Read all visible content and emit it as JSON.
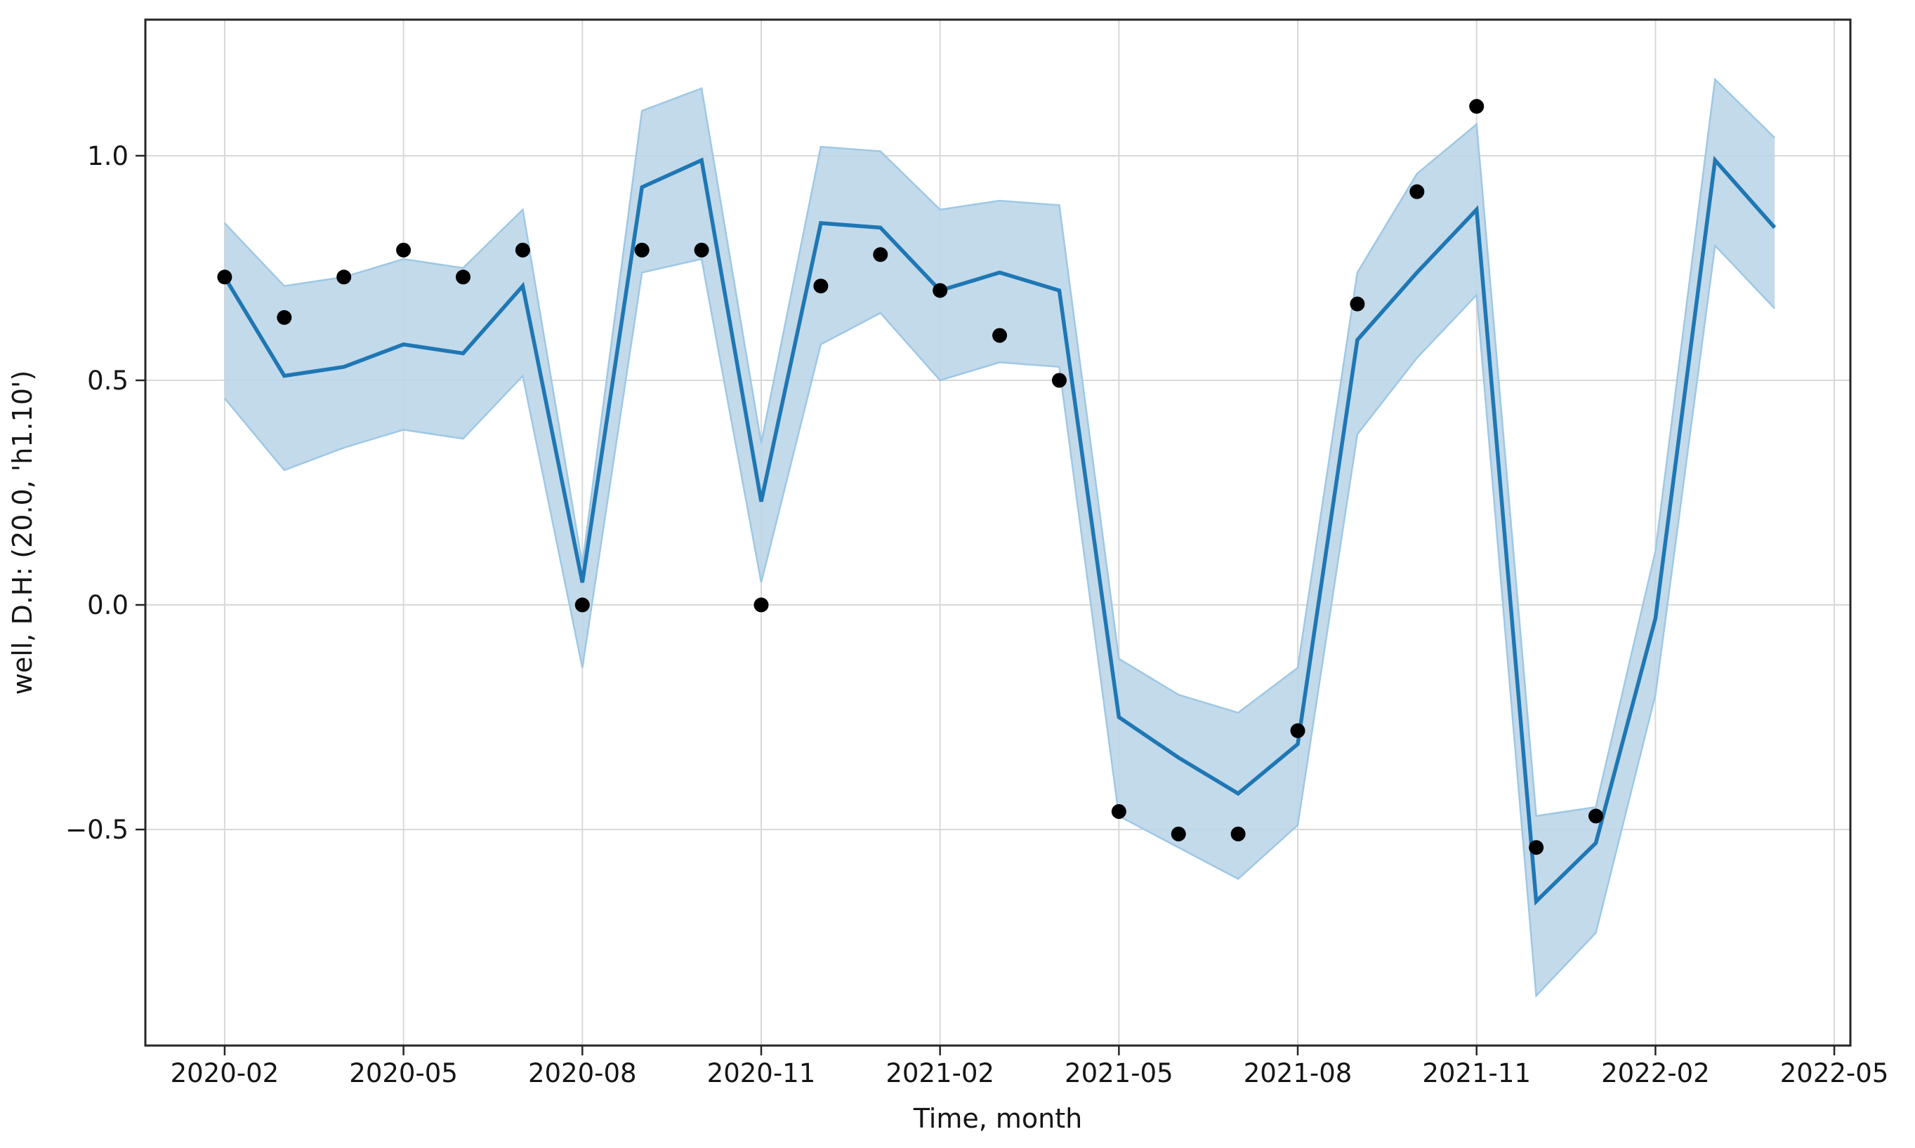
{
  "chart_data": {
    "type": "line",
    "title": "",
    "xlabel": "Time, month",
    "ylabel": "well, D.H: (20.0, 'h1.10')",
    "grid": true,
    "legend": "none",
    "colors": {
      "mean_line": "#1f77b4",
      "band_fill": "#bcd6e9",
      "band_edge": "#9ec8e4",
      "observations": "#000000",
      "gridline": "#d8d8d8",
      "frame": "#262626"
    },
    "x_axis": {
      "tick_labels": [
        "2020-02",
        "2020-05",
        "2020-08",
        "2020-11",
        "2021-02",
        "2021-05",
        "2021-08",
        "2021-11",
        "2022-02",
        "2022-05"
      ],
      "tick_month_indices": [
        0,
        3,
        6,
        9,
        12,
        15,
        18,
        21,
        24,
        27
      ],
      "range_month_index": [
        -1.33,
        27.27
      ]
    },
    "y_axis": {
      "tick_labels": [
        "−0.5",
        "0.0",
        "0.5",
        "1.0"
      ],
      "tick_values": [
        -0.5,
        0.0,
        0.5,
        1.0
      ],
      "range": [
        -0.981,
        1.303
      ]
    },
    "months": [
      "2020-02",
      "2020-03",
      "2020-04",
      "2020-05",
      "2020-06",
      "2020-07",
      "2020-08",
      "2020-09",
      "2020-10",
      "2020-11",
      "2020-12",
      "2021-01",
      "2021-02",
      "2021-03",
      "2021-04",
      "2021-05",
      "2021-06",
      "2021-07",
      "2021-08",
      "2021-09",
      "2021-10",
      "2021-11",
      "2021-12",
      "2022-01",
      "2022-02",
      "2022-03",
      "2022-04"
    ],
    "series": [
      {
        "name": "model-mean",
        "type": "line",
        "values": [
          0.73,
          0.51,
          0.53,
          0.58,
          0.56,
          0.71,
          0.05,
          0.93,
          0.99,
          0.23,
          0.85,
          0.84,
          0.7,
          0.74,
          0.7,
          -0.25,
          -0.34,
          -0.42,
          -0.31,
          0.59,
          0.74,
          0.88,
          -0.66,
          -0.53,
          -0.03,
          0.99,
          0.84
        ]
      },
      {
        "name": "confidence-band",
        "type": "band",
        "upper": [
          0.85,
          0.71,
          0.73,
          0.77,
          0.75,
          0.88,
          0.09,
          1.1,
          1.15,
          0.36,
          1.02,
          1.01,
          0.88,
          0.9,
          0.89,
          -0.12,
          -0.2,
          -0.24,
          -0.14,
          0.74,
          0.96,
          1.07,
          -0.47,
          -0.45,
          0.12,
          1.17,
          1.04
        ],
        "lower": [
          0.46,
          0.3,
          0.35,
          0.39,
          0.37,
          0.51,
          -0.14,
          0.74,
          0.77,
          0.05,
          0.58,
          0.65,
          0.5,
          0.54,
          0.53,
          -0.47,
          -0.54,
          -0.61,
          -0.49,
          0.38,
          0.55,
          0.69,
          -0.87,
          -0.73,
          -0.2,
          0.8,
          0.66
        ]
      },
      {
        "name": "observed-points",
        "type": "scatter",
        "values": [
          0.73,
          0.64,
          0.73,
          0.79,
          0.73,
          0.79,
          0.0,
          0.79,
          0.79,
          0.0,
          0.71,
          0.78,
          0.7,
          0.6,
          0.5,
          -0.46,
          -0.51,
          -0.51,
          -0.28,
          0.67,
          0.92,
          1.11,
          -0.54,
          -0.47,
          null,
          null,
          null
        ]
      }
    ]
  }
}
